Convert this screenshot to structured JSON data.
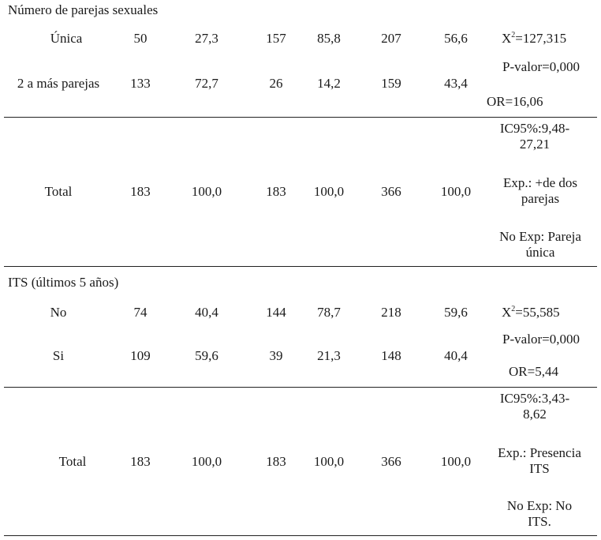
{
  "sections": [
    {
      "title": "Número de parejas sexuales",
      "rows": [
        {
          "label": "Única",
          "cells": [
            "50",
            "27,3",
            "157",
            "85,8",
            "207",
            "56,6"
          ]
        },
        {
          "label": "2 a más parejas",
          "cells": [
            "133",
            "72,7",
            "26",
            "14,2",
            "159",
            "43,4"
          ]
        },
        {
          "label": "Total",
          "cells": [
            "183",
            "100,0",
            "183",
            "100,0",
            "366",
            "100,0"
          ]
        }
      ],
      "stats": {
        "chi_sq": "=127,315",
        "p_value": "P-valor=0,000",
        "or": "OR=16,06",
        "ic_line1": "IC95%:9,48-",
        "ic_line2": "27,21",
        "exp_line1": "Exp.: +de dos",
        "exp_line2": "parejas",
        "noexp_line1": "No Exp: Pareja",
        "noexp_line2": "única"
      }
    },
    {
      "title": "ITS (últimos 5 años)",
      "rows": [
        {
          "label": "No",
          "cells": [
            "74",
            "40,4",
            "144",
            "78,7",
            "218",
            "59,6"
          ]
        },
        {
          "label": "Si",
          "cells": [
            "109",
            "59,6",
            "39",
            "21,3",
            "148",
            "40,4"
          ]
        },
        {
          "label": "Total",
          "cells": [
            "183",
            "100,0",
            "183",
            "100,0",
            "366",
            "100,0"
          ]
        }
      ],
      "stats": {
        "chi_sq": "=55,585",
        "p_value": "P-valor=0,000",
        "or": "OR=5,44",
        "ic_line1": "IC95%:3,43-",
        "ic_line2": "8,62",
        "exp_line1": "Exp.: Presencia",
        "exp_line2": "ITS",
        "noexp_line1": "No Exp: No",
        "noexp_line2": "ITS."
      }
    }
  ],
  "chi_symbol": "X",
  "chi_exponent": "2"
}
